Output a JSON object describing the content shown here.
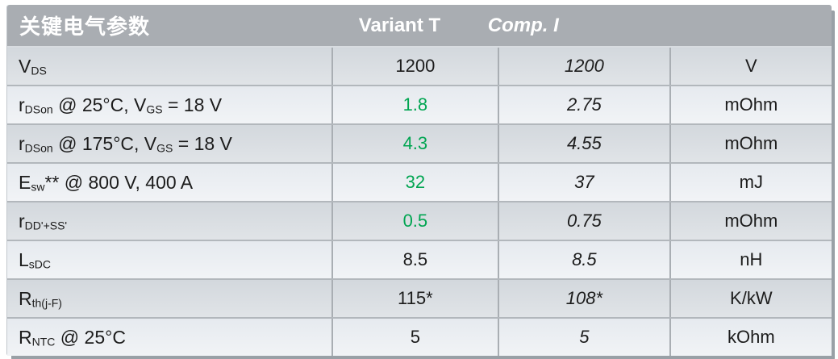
{
  "colors": {
    "accent_green": "#00a551",
    "header_bg": "#a9adb2",
    "row_dark": "#d3d8dd",
    "row_light": "#e6eaef",
    "divider": "#a9aeb3",
    "shadow": "#99a0a6",
    "text": "#1c1c1c"
  },
  "table": {
    "header": {
      "title": "关键电气参数",
      "variant_label": "Variant T",
      "comp_label": "Comp. I",
      "unit_label": ""
    },
    "rows": [
      {
        "label": [
          {
            "t": "V"
          },
          {
            "s": "DS"
          }
        ],
        "variant_t": "1200",
        "variant_t_green": false,
        "comp_i": "1200",
        "unit": "V"
      },
      {
        "label": [
          {
            "t": "r"
          },
          {
            "s": "DSon"
          },
          {
            "t": " @ 25°C, V"
          },
          {
            "s": "GS"
          },
          {
            "t": " = 18 V"
          }
        ],
        "variant_t": "1.8",
        "variant_t_green": true,
        "comp_i": "2.75",
        "unit": "mOhm"
      },
      {
        "label": [
          {
            "t": "r"
          },
          {
            "s": "DSon"
          },
          {
            "t": " @ 175°C, V"
          },
          {
            "s": "GS"
          },
          {
            "t": " = 18 V"
          }
        ],
        "variant_t": "4.3",
        "variant_t_green": true,
        "comp_i": "4.55",
        "unit": "mOhm"
      },
      {
        "label": [
          {
            "t": "E"
          },
          {
            "s": "sw"
          },
          {
            "t": "** @ 800 V, 400 A"
          }
        ],
        "variant_t": "32",
        "variant_t_green": true,
        "comp_i": "37",
        "unit": "mJ"
      },
      {
        "label": [
          {
            "t": "r"
          },
          {
            "s": "DD'+SS'"
          }
        ],
        "variant_t": "0.5",
        "variant_t_green": true,
        "comp_i": "0.75",
        "unit": "mOhm"
      },
      {
        "label": [
          {
            "t": "L"
          },
          {
            "s": "sDC"
          }
        ],
        "variant_t": "8.5",
        "variant_t_green": false,
        "comp_i": "8.5",
        "unit": "nH"
      },
      {
        "label": [
          {
            "t": "R"
          },
          {
            "s": "th(j-F)"
          }
        ],
        "variant_t": "115*",
        "variant_t_green": false,
        "comp_i": "108*",
        "unit": "K/kW"
      },
      {
        "label": [
          {
            "t": "R"
          },
          {
            "s": "NTC"
          },
          {
            "t": " @ 25°C"
          }
        ],
        "variant_t": "5",
        "variant_t_green": false,
        "comp_i": "5",
        "unit": "kOhm"
      }
    ]
  }
}
